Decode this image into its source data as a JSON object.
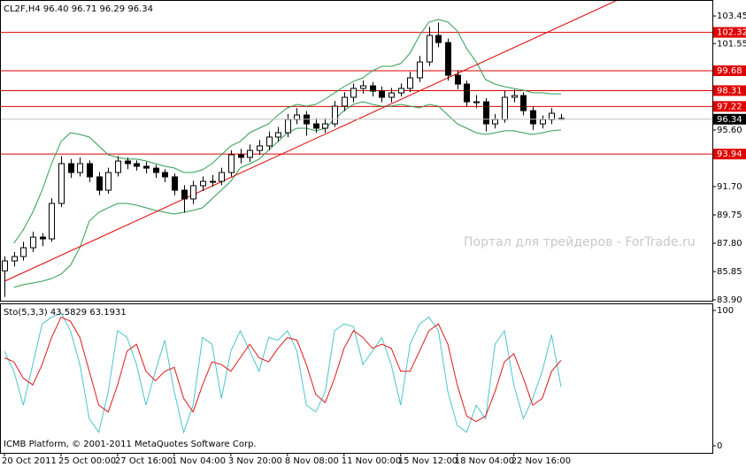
{
  "chart_data": [
    {
      "type": "candlestick",
      "title": "CL2F,H4  96.40 96.71 96.29 96.34",
      "watermark": "Портал для трейдеров - ForTrade.ru",
      "categories": [
        "20 Oct 2011",
        null,
        null,
        null,
        null,
        null,
        "25 Oct 00:00",
        null,
        null,
        null,
        null,
        null,
        "27 Oct 16:00",
        null,
        null,
        null,
        null,
        null,
        "1 Nov 04:00",
        null,
        null,
        null,
        null,
        null,
        "3 Nov 20:00",
        null,
        null,
        null,
        null,
        null,
        "8 Nov 08:00",
        null,
        null,
        null,
        null,
        null,
        "11 Nov 00:00",
        null,
        null,
        null,
        null,
        null,
        "15 Nov 12:00",
        null,
        null,
        null,
        null,
        null,
        "18 Nov 04:00",
        null,
        null,
        null,
        null,
        null,
        "22 Nov 16:00",
        null,
        null,
        null,
        null,
        null
      ],
      "ohlc": [
        [
          85.9,
          86.9,
          84.1,
          86.58
        ],
        [
          86.58,
          87.2,
          86.2,
          86.88
        ],
        [
          86.88,
          87.9,
          86.6,
          87.49
        ],
        [
          87.49,
          88.6,
          87.2,
          88.22
        ],
        [
          88.22,
          88.5,
          87.6,
          88.1
        ],
        [
          88.1,
          90.9,
          87.9,
          90.54
        ],
        [
          90.54,
          93.8,
          90.3,
          93.28
        ],
        [
          93.28,
          93.6,
          92.3,
          92.67
        ],
        [
          92.67,
          93.7,
          92.4,
          93.28
        ],
        [
          93.28,
          93.5,
          92.0,
          92.37
        ],
        [
          92.37,
          92.7,
          91.1,
          91.45
        ],
        [
          91.45,
          93.0,
          91.2,
          92.67
        ],
        [
          92.67,
          93.8,
          92.4,
          93.46
        ],
        [
          93.46,
          93.7,
          92.9,
          93.28
        ],
        [
          93.28,
          93.5,
          92.8,
          93.1
        ],
        [
          93.1,
          93.4,
          92.6,
          92.97
        ],
        [
          92.97,
          93.2,
          92.3,
          92.67
        ],
        [
          92.67,
          92.9,
          92.0,
          92.37
        ],
        [
          92.37,
          92.6,
          91.1,
          91.45
        ],
        [
          91.45,
          91.8,
          89.9,
          90.85
        ],
        [
          90.85,
          92.1,
          90.5,
          91.76
        ],
        [
          91.76,
          92.4,
          91.4,
          92.06
        ],
        [
          92.06,
          92.5,
          91.7,
          92.06
        ],
        [
          92.06,
          93.0,
          91.8,
          92.67
        ],
        [
          92.67,
          94.2,
          92.4,
          93.89
        ],
        [
          93.89,
          94.3,
          93.3,
          93.71
        ],
        [
          93.71,
          94.6,
          93.4,
          94.19
        ],
        [
          94.19,
          94.9,
          93.9,
          94.5
        ],
        [
          94.5,
          95.5,
          94.2,
          95.11
        ],
        [
          95.11,
          95.8,
          94.8,
          95.41
        ],
        [
          95.41,
          96.7,
          95.1,
          96.32
        ],
        [
          96.32,
          97.1,
          96.0,
          96.63
        ],
        [
          96.63,
          96.9,
          95.2,
          96.02
        ],
        [
          96.02,
          96.4,
          95.4,
          95.72
        ],
        [
          95.72,
          96.4,
          95.4,
          96.02
        ],
        [
          96.02,
          97.6,
          95.8,
          97.24
        ],
        [
          97.24,
          98.2,
          96.9,
          97.85
        ],
        [
          97.85,
          98.8,
          97.5,
          98.46
        ],
        [
          98.46,
          99.0,
          98.1,
          98.64
        ],
        [
          98.64,
          98.9,
          97.9,
          98.27
        ],
        [
          98.27,
          98.6,
          97.5,
          97.85
        ],
        [
          97.85,
          98.5,
          97.5,
          98.15
        ],
        [
          98.15,
          98.8,
          97.9,
          98.46
        ],
        [
          98.46,
          99.6,
          98.2,
          99.19
        ],
        [
          99.19,
          100.7,
          98.9,
          100.28
        ],
        [
          100.28,
          102.7,
          100.0,
          102.11
        ],
        [
          102.11,
          103.0,
          101.3,
          101.62
        ],
        [
          101.62,
          101.9,
          99.0,
          99.37
        ],
        [
          99.37,
          99.7,
          98.4,
          98.76
        ],
        [
          98.76,
          99.0,
          97.2,
          97.54
        ],
        [
          97.54,
          98.0,
          97.1,
          97.54
        ],
        [
          97.54,
          97.8,
          95.5,
          96.02
        ],
        [
          96.02,
          96.7,
          95.7,
          96.32
        ],
        [
          96.32,
          98.3,
          96.1,
          97.85
        ],
        [
          97.85,
          98.4,
          97.5,
          97.97
        ],
        [
          97.97,
          98.2,
          96.6,
          96.93
        ],
        [
          96.93,
          97.2,
          95.6,
          96.02
        ],
        [
          96.02,
          96.6,
          95.7,
          96.32
        ],
        [
          96.32,
          97.1,
          96.0,
          96.75
        ],
        [
          96.4,
          96.71,
          96.29,
          96.34
        ]
      ],
      "bands": [
        {
          "color": "#2e9e4e",
          "values": [
            null,
            87.8,
            88.72,
            89.93,
            91.46,
            93.28,
            94.81,
            95.41,
            95.29,
            95.11,
            94.5,
            93.89,
            93.71,
            93.59,
            93.59,
            93.47,
            93.28,
            93.1,
            92.98,
            92.67,
            92.67,
            92.86,
            93.28,
            93.89,
            94.5,
            94.81,
            95.41,
            95.72,
            96.02,
            96.63,
            97.12,
            97.36,
            97.24,
            97.36,
            97.73,
            98.16,
            98.58,
            98.95,
            99.19,
            99.68,
            99.98,
            99.98,
            100.17,
            100.9,
            102.11,
            103.03,
            103.21,
            103.03,
            102.42,
            101.2,
            100.29,
            99.07,
            98.76,
            98.58,
            98.46,
            98.34,
            98.16,
            98.16,
            98.09,
            98.09
          ]
        },
        {
          "color": "#2e9e4e",
          "values": [
            null,
            84.76,
            84.94,
            85.06,
            85.18,
            85.37,
            85.67,
            86.28,
            87.5,
            89.32,
            89.93,
            90.24,
            90.54,
            90.54,
            90.42,
            90.24,
            90.06,
            89.93,
            89.81,
            89.93,
            90.06,
            90.24,
            90.85,
            91.46,
            92.07,
            92.98,
            93.28,
            93.59,
            94.2,
            94.81,
            95.41,
            95.72,
            95.72,
            95.54,
            95.72,
            96.33,
            96.94,
            97.36,
            97.55,
            97.36,
            97.24,
            97.24,
            97.36,
            97.24,
            97.12,
            97.36,
            97.24,
            96.63,
            96.02,
            95.72,
            95.41,
            95.29,
            95.41,
            95.54,
            95.54,
            95.41,
            95.29,
            95.41,
            95.54,
            95.6
          ]
        }
      ],
      "trendline": {
        "color": "#e00000",
        "start": [
          0,
          85.18
        ],
        "end": [
          65,
          104.55
        ]
      },
      "levels": [
        102.32,
        99.68,
        98.31,
        97.22,
        93.94
      ],
      "level_color": "#e00000",
      "last_price": 96.34,
      "ylim": [
        83.84,
        104.55
      ],
      "yticks": [
        103.45,
        101.55,
        {
          "value": 95.6,
          "label": "95.60"
        },
        {
          "value": 91.7,
          "label": "91.70"
        },
        89.75,
        {
          "value": 87.8,
          "label": "87.80"
        },
        85.85,
        {
          "value": 83.9,
          "label": "83.90"
        }
      ]
    },
    {
      "type": "line",
      "title": "Sto(5,3,3) 43.5829 63.1931",
      "annotation": "ICMB Platform, © 2001-2011 MetaQuotes Software Corp.",
      "series": [
        {
          "color": "#4cc4cc",
          "values": [
            70,
            55,
            30,
            60,
            90,
            95,
            98,
            85,
            60,
            20,
            10,
            40,
            85,
            80,
            60,
            30,
            55,
            78,
            40,
            10,
            30,
            80,
            75,
            35,
            70,
            85,
            70,
            55,
            80,
            78,
            85,
            70,
            30,
            25,
            40,
            85,
            90,
            88,
            60,
            70,
            80,
            60,
            30,
            75,
            90,
            95,
            85,
            40,
            15,
            10,
            30,
            20,
            75,
            85,
            45,
            20,
            35,
            55,
            82,
            43.5829
          ]
        },
        {
          "color": "#e01818",
          "values": [
            65,
            62,
            50,
            45,
            60,
            80,
            95,
            92,
            80,
            55,
            30,
            25,
            45,
            70,
            75,
            55,
            48,
            55,
            58,
            35,
            25,
            45,
            62,
            60,
            55,
            65,
            75,
            65,
            62,
            72,
            80,
            78,
            60,
            38,
            32,
            50,
            72,
            85,
            80,
            72,
            75,
            72,
            55,
            55,
            70,
            85,
            90,
            75,
            45,
            22,
            18,
            22,
            40,
            62,
            68,
            50,
            30,
            35,
            55,
            63.1931
          ]
        }
      ],
      "ylim": [
        -5.2,
        105.2
      ],
      "yticks": [
        100,
        0
      ]
    }
  ]
}
